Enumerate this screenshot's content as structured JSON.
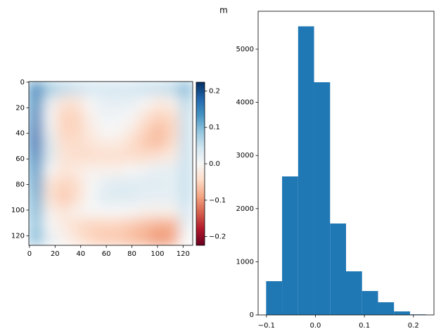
{
  "title": "m",
  "chart_data": [
    {
      "type": "heatmap",
      "colormap": "RdBu",
      "xlim": [
        -0.5,
        127.5
      ],
      "ylim": [
        127.5,
        -0.5
      ],
      "xticks": [
        0,
        20,
        40,
        60,
        80,
        100,
        120
      ],
      "yticks": [
        0,
        20,
        40,
        60,
        80,
        100,
        120
      ],
      "clim": [
        -0.224,
        0.224
      ],
      "cticks": [
        {
          "value": -0.2,
          "label": "−0.2"
        },
        {
          "value": -0.1,
          "label": "−0.1"
        },
        {
          "value": 0.0,
          "label": "0.0"
        },
        {
          "value": 0.1,
          "label": "0.1"
        },
        {
          "value": 0.2,
          "label": "0.2"
        }
      ],
      "values": [
        [
          0.15,
          0.08,
          0.06,
          0.05,
          0.04,
          0.04,
          0.04,
          0.04,
          0.05,
          0.05,
          0.06,
          0.1
        ],
        [
          0.14,
          0.02,
          -0.03,
          -0.03,
          0.0,
          0.02,
          0.02,
          0.02,
          0.0,
          -0.02,
          -0.01,
          0.06
        ],
        [
          0.15,
          0.0,
          -0.05,
          -0.05,
          -0.01,
          0.01,
          0.01,
          0.0,
          -0.03,
          -0.05,
          -0.04,
          0.05
        ],
        [
          0.16,
          0.01,
          -0.05,
          -0.05,
          -0.02,
          0.0,
          0.0,
          -0.02,
          -0.05,
          -0.07,
          -0.05,
          0.05
        ],
        [
          0.17,
          0.03,
          -0.04,
          -0.04,
          -0.03,
          -0.02,
          -0.02,
          -0.04,
          -0.06,
          -0.07,
          -0.04,
          0.05
        ],
        [
          0.15,
          0.03,
          -0.03,
          -0.04,
          -0.04,
          -0.04,
          -0.04,
          -0.04,
          -0.04,
          -0.03,
          -0.02,
          0.05
        ],
        [
          0.13,
          0.0,
          -0.03,
          -0.02,
          -0.01,
          -0.01,
          -0.01,
          0.0,
          0.01,
          0.02,
          0.02,
          0.05
        ],
        [
          0.12,
          -0.03,
          -0.05,
          -0.04,
          0.0,
          0.02,
          0.03,
          0.03,
          0.03,
          0.03,
          0.02,
          0.05
        ],
        [
          0.11,
          -0.03,
          -0.06,
          -0.04,
          0.0,
          0.03,
          0.03,
          0.03,
          0.02,
          0.02,
          0.02,
          0.05
        ],
        [
          0.1,
          -0.01,
          -0.03,
          -0.01,
          0.0,
          0.0,
          0.0,
          0.0,
          -0.01,
          -0.01,
          -0.01,
          0.04
        ],
        [
          0.09,
          0.0,
          -0.02,
          -0.04,
          -0.05,
          -0.05,
          -0.05,
          -0.06,
          -0.07,
          -0.08,
          -0.08,
          0.02
        ],
        [
          0.1,
          0.02,
          -0.01,
          -0.03,
          -0.05,
          -0.06,
          -0.06,
          -0.07,
          -0.08,
          -0.1,
          -0.09,
          0.0
        ]
      ]
    },
    {
      "type": "histogram",
      "color": "#1f77b4",
      "bins": [
        -0.1007,
        -0.0681,
        -0.0354,
        -0.0028,
        0.0299,
        0.0625,
        0.0951,
        0.1278,
        0.1604,
        0.1931,
        0.2257
      ],
      "values": [
        635,
        2606,
        5430,
        4378,
        1720,
        820,
        450,
        238,
        66,
        10
      ],
      "xlim": [
        -0.117,
        0.242
      ],
      "ylim": [
        0,
        5714
      ],
      "xticks": [
        {
          "value": -0.1,
          "label": "−0.1"
        },
        {
          "value": 0.0,
          "label": "0.0"
        },
        {
          "value": 0.1,
          "label": "0.1"
        },
        {
          "value": 0.2,
          "label": "0.2"
        }
      ],
      "yticks": [
        0,
        1000,
        2000,
        3000,
        4000,
        5000
      ]
    }
  ]
}
